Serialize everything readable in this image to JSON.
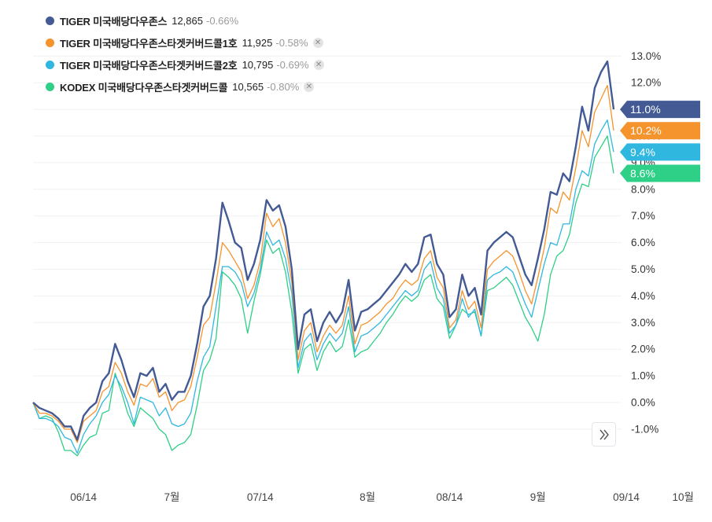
{
  "legend": [
    {
      "name": "TIGER 미국배당다우존스",
      "value": "12,865",
      "change": "-0.66%",
      "removable": false
    },
    {
      "name": "TIGER 미국배당다우존스타겟커버드콜1호",
      "value": "11,925",
      "change": "-0.58%",
      "removable": true
    },
    {
      "name": "TIGER 미국배당다우존스타겟커버드콜2호",
      "value": "10,795",
      "change": "-0.69%",
      "removable": true
    },
    {
      "name": "KODEX 미국배당다우존스타겟커버드콜",
      "value": "10,565",
      "change": "-0.80%",
      "removable": true
    }
  ],
  "controls": {
    "expand_icon": "double-chevron-right-icon"
  },
  "chart_data": {
    "type": "line",
    "title": "",
    "xlabel": "",
    "ylabel": "",
    "y_unit": "%",
    "ylim": [
      -2.5,
      13.0
    ],
    "y_ticks": [
      13.0,
      12.0,
      11.0,
      10.0,
      9.0,
      8.0,
      7.0,
      6.0,
      5.0,
      4.0,
      3.0,
      2.0,
      1.0,
      0.0,
      -1.0
    ],
    "y_tick_labels": [
      "13.0%",
      "12.0%",
      "11.0%",
      "10.0%",
      "9.0%",
      "8.0%",
      "7.0%",
      "6.0%",
      "5.0%",
      "4.0%",
      "3.0%",
      "2.0%",
      "1.0%",
      "0.0%",
      "-1.0%"
    ],
    "x_ticks": [
      {
        "index": 8,
        "label": "06/14"
      },
      {
        "index": 22,
        "label": "7월"
      },
      {
        "index": 36,
        "label": "07/14"
      },
      {
        "index": 53,
        "label": "8월"
      },
      {
        "index": 66,
        "label": "08/14"
      },
      {
        "index": 80,
        "label": "9월"
      },
      {
        "index": 94,
        "label": "09/14"
      },
      {
        "index": 103,
        "label": "10월"
      }
    ],
    "grid": true,
    "legend_position": "top-left",
    "series": [
      {
        "name": "TIGER 미국배당다우존스",
        "color": "#435a94",
        "end_label": "11.0%",
        "values": [
          0,
          -0.2,
          -0.3,
          -0.4,
          -0.6,
          -0.9,
          -0.9,
          -1.4,
          -0.5,
          -0.2,
          0,
          0.8,
          1.1,
          2.2,
          1.6,
          0.8,
          0.2,
          1.1,
          1.0,
          1.3,
          0.4,
          0.7,
          0.1,
          0.4,
          0.4,
          1.0,
          2.2,
          3.6,
          4.0,
          5.4,
          7.5,
          6.8,
          6.0,
          5.8,
          4.6,
          5.2,
          6.1,
          7.6,
          7.2,
          7.4,
          6.6,
          5.0,
          2.0,
          3.3,
          3.5,
          2.3,
          3.0,
          3.4,
          3.0,
          3.4,
          4.6,
          2.7,
          3.4,
          3.5,
          3.7,
          3.9,
          4.2,
          4.5,
          4.8,
          5.2,
          4.9,
          5.2,
          6.2,
          6.3,
          5.2,
          4.8,
          3.2,
          3.5,
          4.8,
          4.0,
          4.3,
          3.3,
          5.7,
          6.0,
          6.2,
          6.4,
          6.2,
          5.5,
          4.8,
          4.4,
          5.4,
          6.5,
          7.9,
          7.8,
          8.6,
          8.3,
          9.6,
          11.1,
          10.2,
          11.8,
          12.4,
          12.8,
          11.0
        ]
      },
      {
        "name": "TIGER 미국배당다우존스타겟커버드콜1호",
        "color": "#f5932c",
        "end_label": "10.2%",
        "values": [
          0,
          -0.4,
          -0.4,
          -0.5,
          -0.7,
          -1.0,
          -1.0,
          -1.5,
          -0.7,
          -0.5,
          -0.3,
          0.4,
          0.6,
          1.5,
          1.1,
          0.4,
          -0.1,
          0.7,
          0.6,
          0.9,
          0.2,
          0.4,
          -0.3,
          0,
          0.1,
          0.6,
          1.7,
          2.9,
          3.2,
          4.5,
          6.0,
          5.7,
          5.3,
          4.9,
          3.9,
          4.4,
          5.3,
          7.1,
          6.6,
          6.9,
          6.0,
          4.5,
          1.6,
          2.7,
          3.0,
          1.9,
          2.5,
          2.9,
          2.6,
          2.9,
          4.0,
          2.2,
          2.9,
          3.0,
          3.2,
          3.4,
          3.7,
          3.9,
          4.3,
          4.6,
          4.4,
          4.6,
          5.4,
          5.7,
          4.7,
          4.3,
          2.8,
          3.1,
          4.2,
          3.5,
          3.8,
          2.8,
          5.0,
          5.3,
          5.5,
          5.7,
          5.5,
          4.9,
          4.2,
          3.7,
          4.7,
          5.8,
          7.3,
          7.1,
          7.9,
          7.6,
          8.8,
          10.2,
          9.6,
          10.9,
          11.4,
          11.9,
          10.2
        ]
      },
      {
        "name": "TIGER 미국배당다우존스타겟커버드콜2호",
        "color": "#2fb7e0",
        "end_label": "9.4%",
        "values": [
          0,
          -0.6,
          -0.6,
          -0.7,
          -0.9,
          -1.3,
          -1.4,
          -1.9,
          -1.2,
          -0.8,
          -0.5,
          0.0,
          0.3,
          1.0,
          0.6,
          0.0,
          -0.8,
          0.2,
          0.1,
          0.0,
          -0.5,
          -0.2,
          -0.8,
          -0.9,
          -0.8,
          -0.4,
          0.8,
          1.7,
          2.1,
          3.6,
          5.1,
          5.1,
          4.9,
          4.5,
          3.6,
          4.1,
          5.0,
          6.4,
          5.9,
          6.1,
          5.4,
          4.1,
          1.3,
          2.3,
          2.6,
          1.6,
          2.2,
          2.6,
          2.3,
          2.6,
          3.6,
          1.9,
          2.5,
          2.6,
          2.8,
          3.0,
          3.3,
          3.6,
          3.9,
          4.2,
          4.0,
          4.2,
          5.0,
          5.3,
          4.3,
          3.9,
          2.6,
          2.9,
          3.9,
          3.2,
          3.5,
          2.5,
          4.6,
          4.8,
          4.9,
          5.1,
          4.9,
          4.3,
          3.7,
          3.2,
          4.2,
          5.2,
          6.0,
          5.9,
          6.7,
          6.7,
          8.0,
          8.7,
          8.5,
          9.7,
          10.2,
          10.6,
          9.4
        ]
      },
      {
        "name": "KODEX 미국배당다우존스타겟커버드콜",
        "color": "#2ecf86",
        "end_label": "8.6%",
        "values": [
          0,
          -0.6,
          -0.5,
          -0.6,
          -1.1,
          -1.8,
          -1.8,
          -2.0,
          -1.6,
          -1.3,
          -1.2,
          -0.4,
          -0.3,
          1.1,
          0.4,
          -0.4,
          -0.9,
          -0.2,
          -0.4,
          -0.6,
          -1.0,
          -1.2,
          -1.8,
          -1.6,
          -1.5,
          -1.2,
          -0.1,
          1.2,
          1.6,
          2.4,
          4.9,
          4.7,
          4.4,
          3.9,
          2.6,
          3.8,
          4.8,
          6.1,
          5.6,
          5.8,
          4.9,
          3.4,
          1.1,
          2.0,
          2.2,
          1.2,
          1.9,
          2.3,
          1.9,
          2.1,
          3.1,
          1.7,
          1.9,
          2.0,
          2.3,
          2.6,
          3.0,
          3.3,
          3.7,
          4.0,
          3.8,
          4.0,
          4.6,
          4.8,
          3.9,
          3.6,
          2.4,
          2.9,
          3.5,
          3.3,
          3.4,
          2.5,
          4.2,
          4.3,
          4.5,
          4.7,
          4.4,
          3.8,
          3.2,
          2.8,
          2.3,
          3.3,
          4.8,
          5.5,
          5.7,
          6.3,
          7.5,
          8.2,
          8.1,
          9.2,
          9.6,
          10.0,
          8.6
        ]
      }
    ]
  }
}
